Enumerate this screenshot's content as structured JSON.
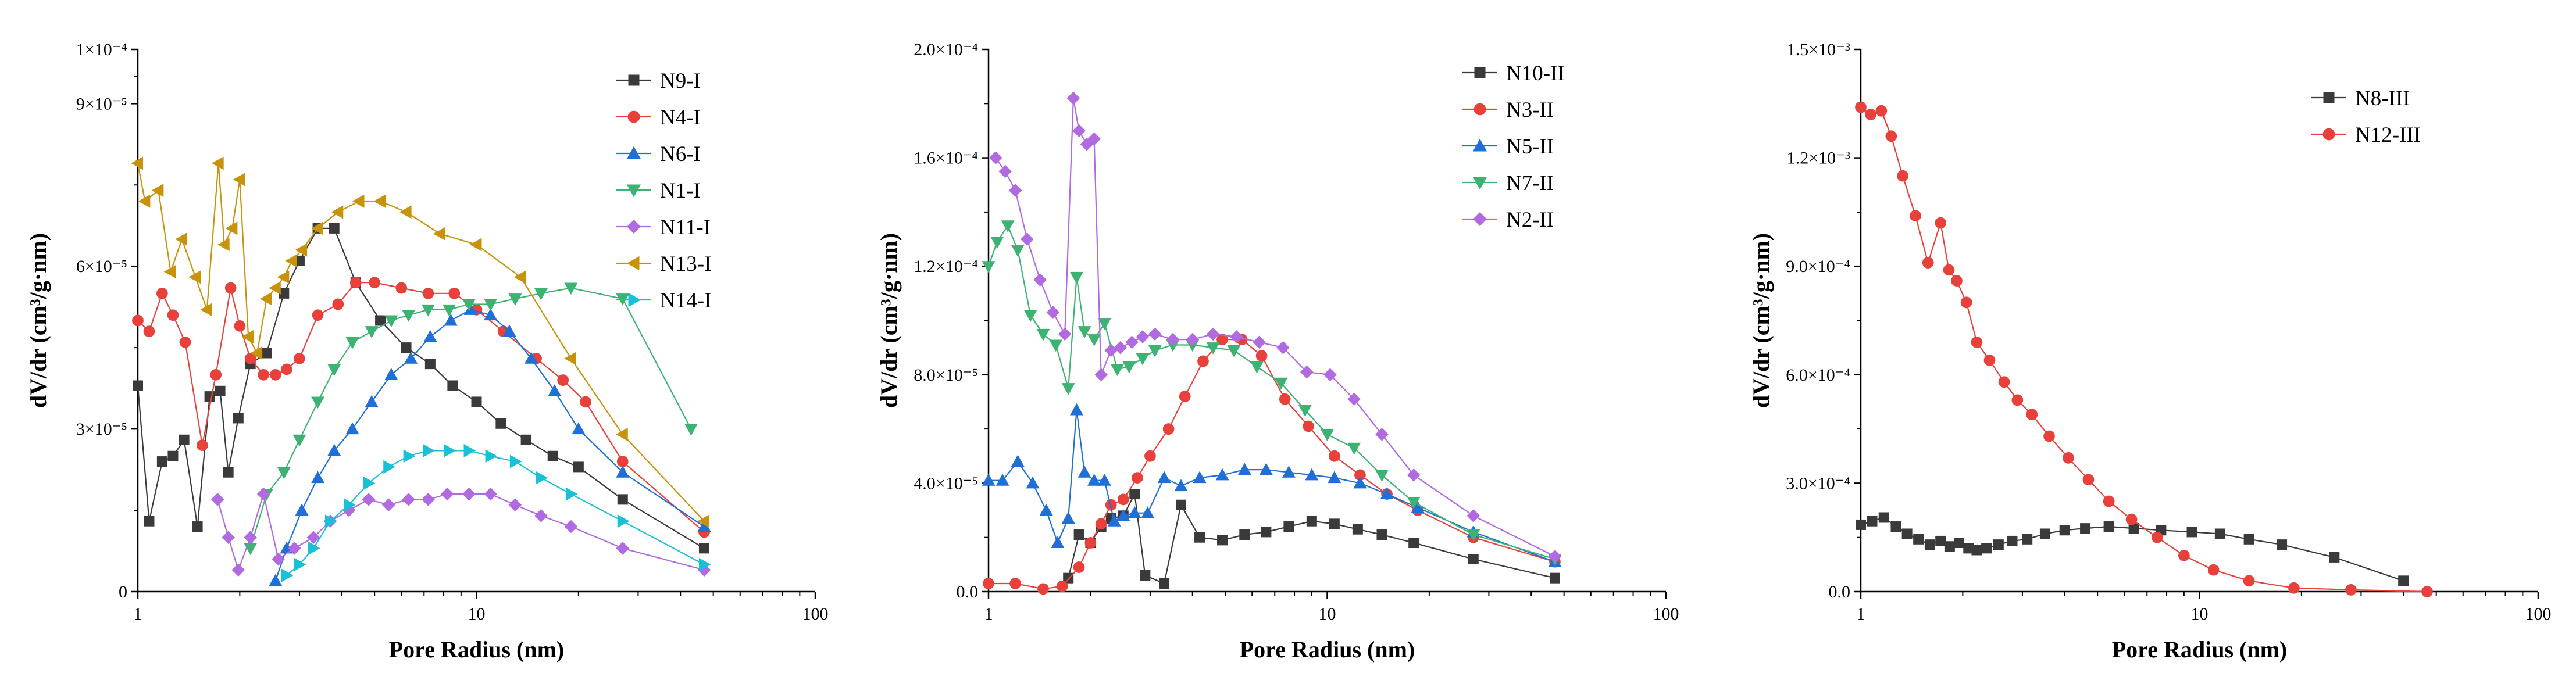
{
  "figure": {
    "background": "#ffffff"
  },
  "chart_data": [
    {
      "type": "line",
      "title": "",
      "xlabel": "Pore Radius (nm)",
      "ylabel": "dV/dr (cm³/g·nm)",
      "xscale": "log",
      "xlim": [
        1,
        100
      ],
      "ylim": [
        0,
        0.0001
      ],
      "x_ticks": [
        1,
        10,
        100
      ],
      "x_tick_labels": [
        "1",
        "10",
        "100"
      ],
      "y_ticks": [
        0,
        3e-05,
        6e-05,
        9e-05,
        0.0001
      ],
      "y_tick_labels": [
        "0",
        "3×10⁻⁵",
        "6×10⁻⁵",
        "9×10⁻⁵",
        "1×10⁻⁴"
      ],
      "legend_position": "top-right",
      "series": [
        {
          "name": "N9-I",
          "color": "#3a3a3a",
          "marker": "square",
          "x": [
            1.0,
            1.08,
            1.18,
            1.27,
            1.37,
            1.5,
            1.63,
            1.75,
            1.85,
            1.98,
            2.15,
            2.4,
            2.7,
            3.0,
            3.4,
            3.8,
            4.4,
            5.2,
            6.2,
            7.3,
            8.5,
            10.0,
            11.8,
            14,
            16.8,
            20,
            27,
            47
          ],
          "y": [
            3.8e-05,
            1.3e-05,
            2.4e-05,
            2.5e-05,
            2.8e-05,
            1.2e-05,
            3.6e-05,
            3.7e-05,
            2.2e-05,
            3.2e-05,
            4.2e-05,
            4.4e-05,
            5.5e-05,
            6.1e-05,
            6.7e-05,
            6.7e-05,
            5.7e-05,
            5e-05,
            4.5e-05,
            4.2e-05,
            3.8e-05,
            3.5e-05,
            3.1e-05,
            2.8e-05,
            2.5e-05,
            2.3e-05,
            1.7e-05,
            8e-06
          ]
        },
        {
          "name": "N4-I",
          "color": "#e8413c",
          "marker": "circle",
          "x": [
            1.0,
            1.08,
            1.18,
            1.27,
            1.38,
            1.55,
            1.7,
            1.88,
            2.0,
            2.15,
            2.35,
            2.55,
            2.75,
            3.0,
            3.4,
            3.9,
            4.4,
            5.0,
            6.0,
            7.2,
            8.6,
            10,
            12,
            15,
            18,
            21,
            27,
            47
          ],
          "y": [
            5e-05,
            4.8e-05,
            5.5e-05,
            5.1e-05,
            4.6e-05,
            2.7e-05,
            4e-05,
            5.6e-05,
            4.9e-05,
            4.3e-05,
            4e-05,
            4e-05,
            4.1e-05,
            4.3e-05,
            5.1e-05,
            5.3e-05,
            5.7e-05,
            5.7e-05,
            5.6e-05,
            5.5e-05,
            5.5e-05,
            5.2e-05,
            4.8e-05,
            4.3e-05,
            3.9e-05,
            3.5e-05,
            2.4e-05,
            1.1e-05
          ]
        },
        {
          "name": "N6-I",
          "color": "#1f6fd6",
          "marker": "triangle-up",
          "x": [
            2.55,
            2.75,
            3.05,
            3.4,
            3.8,
            4.3,
            4.9,
            5.6,
            6.4,
            7.3,
            8.4,
            9.6,
            11,
            12.5,
            14.5,
            17,
            20,
            27,
            47
          ],
          "y": [
            2e-06,
            8e-06,
            1.5e-05,
            2.1e-05,
            2.6e-05,
            3e-05,
            3.5e-05,
            4e-05,
            4.3e-05,
            4.7e-05,
            5e-05,
            5.2e-05,
            5.1e-05,
            4.8e-05,
            4.3e-05,
            3.7e-05,
            3e-05,
            2.2e-05,
            1.2e-05
          ]
        },
        {
          "name": "N1-I",
          "color": "#3cb372",
          "marker": "triangle-down",
          "x": [
            2.15,
            2.4,
            2.7,
            3.0,
            3.4,
            3.8,
            4.3,
            4.9,
            5.6,
            6.3,
            7.2,
            8.3,
            9.5,
            11,
            13,
            15.5,
            19,
            27,
            43
          ],
          "y": [
            8e-06,
            1.8e-05,
            2.2e-05,
            2.8e-05,
            3.5e-05,
            4.1e-05,
            4.6e-05,
            4.8e-05,
            5e-05,
            5.1e-05,
            5.2e-05,
            5.2e-05,
            5.3e-05,
            5.3e-05,
            5.4e-05,
            5.5e-05,
            5.6e-05,
            5.4e-05,
            3e-05
          ]
        },
        {
          "name": "N11-I",
          "color": "#b26ae0",
          "marker": "diamond",
          "x": [
            1.72,
            1.85,
            1.98,
            2.15,
            2.35,
            2.6,
            2.9,
            3.3,
            3.7,
            4.2,
            4.8,
            5.5,
            6.3,
            7.2,
            8.2,
            9.5,
            11,
            13,
            15.5,
            19,
            27,
            47
          ],
          "y": [
            1.7e-05,
            1e-05,
            4e-06,
            1e-05,
            1.8e-05,
            6e-06,
            8e-06,
            1e-05,
            1.3e-05,
            1.5e-05,
            1.7e-05,
            1.6e-05,
            1.7e-05,
            1.7e-05,
            1.8e-05,
            1.8e-05,
            1.8e-05,
            1.6e-05,
            1.4e-05,
            1.2e-05,
            8e-06,
            4e-06
          ]
        },
        {
          "name": "N13-I",
          "color": "#c8930a",
          "marker": "triangle-left",
          "x": [
            1.0,
            1.05,
            1.15,
            1.25,
            1.35,
            1.48,
            1.6,
            1.73,
            1.8,
            1.9,
            2.0,
            2.12,
            2.25,
            2.4,
            2.55,
            2.7,
            2.85,
            3.05,
            3.4,
            3.9,
            4.5,
            5.2,
            6.2,
            7.8,
            10,
            13.5,
            19,
            27,
            47
          ],
          "y": [
            7.9e-05,
            7.2e-05,
            7.4e-05,
            5.9e-05,
            6.5e-05,
            5.8e-05,
            5.2e-05,
            7.9e-05,
            6.4e-05,
            6.7e-05,
            7.6e-05,
            4.7e-05,
            4.4e-05,
            5.4e-05,
            5.6e-05,
            5.8e-05,
            6.1e-05,
            6.3e-05,
            6.7e-05,
            7e-05,
            7.2e-05,
            7.2e-05,
            7e-05,
            6.6e-05,
            6.4e-05,
            5.8e-05,
            4.3e-05,
            2.9e-05,
            1.3e-05
          ]
        },
        {
          "name": "N14-I",
          "color": "#19c0d6",
          "marker": "triangle-right",
          "x": [
            2.75,
            3.0,
            3.3,
            3.7,
            4.2,
            4.8,
            5.5,
            6.3,
            7.2,
            8.3,
            9.5,
            11,
            13,
            15.5,
            19,
            27,
            47
          ],
          "y": [
            3e-06,
            5e-06,
            8e-06,
            1.3e-05,
            1.6e-05,
            2e-05,
            2.3e-05,
            2.5e-05,
            2.6e-05,
            2.6e-05,
            2.6e-05,
            2.5e-05,
            2.4e-05,
            2.1e-05,
            1.8e-05,
            1.3e-05,
            5e-06
          ]
        }
      ]
    },
    {
      "type": "line",
      "title": "",
      "xlabel": "Pore Radius (nm)",
      "ylabel": "dV/dr (cm³/g·nm)",
      "xscale": "log",
      "xlim": [
        1,
        100
      ],
      "ylim": [
        0,
        0.0002
      ],
      "x_ticks": [
        1,
        10,
        100
      ],
      "x_tick_labels": [
        "1",
        "10",
        "100"
      ],
      "y_ticks": [
        0,
        4e-05,
        8e-05,
        0.00012,
        0.00016,
        0.0002
      ],
      "y_tick_labels": [
        "0.0",
        "4.0×10⁻⁵",
        "8.0×10⁻⁵",
        "1.2×10⁻⁴",
        "1.6×10⁻⁴",
        "2.0×10⁻⁴"
      ],
      "legend_position": "top-right",
      "series": [
        {
          "name": "N10-II",
          "color": "#3a3a3a",
          "marker": "square",
          "x": [
            1.72,
            1.85,
            2.0,
            2.15,
            2.3,
            2.5,
            2.7,
            2.9,
            3.3,
            3.7,
            4.2,
            4.9,
            5.7,
            6.6,
            7.7,
            9,
            10.5,
            12.3,
            14.5,
            18,
            27,
            47
          ],
          "y": [
            5e-06,
            2.1e-05,
            1.8e-05,
            2.4e-05,
            2.7e-05,
            2.8e-05,
            3.6e-05,
            6e-06,
            3e-06,
            3.2e-05,
            2e-05,
            1.9e-05,
            2.1e-05,
            2.2e-05,
            2.4e-05,
            2.6e-05,
            2.5e-05,
            2.3e-05,
            2.1e-05,
            1.8e-05,
            1.2e-05,
            5e-06
          ]
        },
        {
          "name": "N3-II",
          "color": "#e8413c",
          "marker": "circle",
          "x": [
            1.0,
            1.2,
            1.45,
            1.65,
            1.85,
            2.0,
            2.15,
            2.3,
            2.5,
            2.75,
            3.0,
            3.4,
            3.8,
            4.3,
            4.9,
            5.6,
            6.4,
            7.5,
            8.8,
            10.5,
            12.5,
            15,
            18.5,
            27,
            47
          ],
          "y": [
            3e-06,
            3e-06,
            1e-06,
            2e-06,
            9e-06,
            1.8e-05,
            2.5e-05,
            3.2e-05,
            3.4e-05,
            4.2e-05,
            5e-05,
            6e-05,
            7.2e-05,
            8.5e-05,
            9.3e-05,
            9.3e-05,
            8.7e-05,
            7.1e-05,
            6.1e-05,
            5e-05,
            4.3e-05,
            3.6e-05,
            3e-05,
            2e-05,
            1.1e-05
          ]
        },
        {
          "name": "N5-II",
          "color": "#1f6fd6",
          "marker": "triangle-up",
          "x": [
            1.0,
            1.1,
            1.22,
            1.35,
            1.48,
            1.6,
            1.72,
            1.82,
            1.92,
            2.05,
            2.2,
            2.35,
            2.5,
            2.7,
            2.95,
            3.3,
            3.7,
            4.2,
            4.9,
            5.7,
            6.6,
            7.7,
            9,
            10.5,
            12.5,
            15,
            18.5,
            27,
            47
          ],
          "y": [
            4.1e-05,
            4.1e-05,
            4.8e-05,
            4e-05,
            3e-05,
            1.8e-05,
            2.7e-05,
            6.7e-05,
            4.4e-05,
            4.1e-05,
            4.1e-05,
            2.6e-05,
            2.8e-05,
            2.9e-05,
            2.9e-05,
            4.2e-05,
            3.9e-05,
            4.2e-05,
            4.3e-05,
            4.5e-05,
            4.5e-05,
            4.4e-05,
            4.3e-05,
            4.2e-05,
            4e-05,
            3.6e-05,
            3.1e-05,
            2.2e-05,
            1.1e-05
          ]
        },
        {
          "name": "N7-II",
          "color": "#3cb372",
          "marker": "triangle-down",
          "x": [
            1.0,
            1.06,
            1.14,
            1.22,
            1.33,
            1.45,
            1.58,
            1.72,
            1.82,
            1.92,
            2.05,
            2.2,
            2.4,
            2.6,
            2.85,
            3.1,
            3.5,
            4.0,
            4.6,
            5.3,
            6.2,
            7.3,
            8.6,
            10,
            12,
            14.5,
            18,
            27,
            47
          ],
          "y": [
            0.00012,
            0.000129,
            0.000135,
            0.000126,
            0.000102,
            9.5e-05,
            9.1e-05,
            7.5e-05,
            0.000116,
            9.6e-05,
            9.3e-05,
            9.9e-05,
            8.2e-05,
            8.3e-05,
            8.6e-05,
            8.9e-05,
            9.1e-05,
            9.1e-05,
            9e-05,
            8.9e-05,
            8.3e-05,
            7.7e-05,
            6.7e-05,
            5.8e-05,
            5.3e-05,
            4.3e-05,
            3.3e-05,
            2.1e-05,
            1.2e-05
          ]
        },
        {
          "name": "N2-II",
          "color": "#b26ae0",
          "marker": "diamond",
          "x": [
            1.05,
            1.12,
            1.2,
            1.3,
            1.42,
            1.55,
            1.68,
            1.78,
            1.85,
            1.95,
            2.05,
            2.15,
            2.3,
            2.45,
            2.65,
            2.85,
            3.1,
            3.5,
            4.0,
            4.6,
            5.4,
            6.3,
            7.4,
            8.7,
            10.2,
            12,
            14.5,
            18,
            27,
            47
          ],
          "y": [
            0.00016,
            0.000155,
            0.000148,
            0.00013,
            0.000115,
            0.000103,
            9.5e-05,
            0.000182,
            0.00017,
            0.000165,
            0.000167,
            8e-05,
            8.9e-05,
            9e-05,
            9.2e-05,
            9.4e-05,
            9.5e-05,
            9.3e-05,
            9.3e-05,
            9.5e-05,
            9.4e-05,
            9.2e-05,
            9e-05,
            8.1e-05,
            8e-05,
            7.1e-05,
            5.8e-05,
            4.3e-05,
            2.8e-05,
            1.3e-05
          ]
        }
      ]
    },
    {
      "type": "line",
      "title": "",
      "xlabel": "Pore Radius (nm)",
      "ylabel": "dV/dr (cm³/g·nm)",
      "xscale": "log",
      "xlim": [
        1,
        100
      ],
      "ylim": [
        0,
        0.0015
      ],
      "x_ticks": [
        1,
        10,
        100
      ],
      "x_tick_labels": [
        "1",
        "10",
        "100"
      ],
      "y_ticks": [
        0,
        0.0003,
        0.0006,
        0.0009,
        0.0012,
        0.0015
      ],
      "y_tick_labels": [
        "0.0",
        "3.0×10⁻⁴",
        "6.0×10⁻⁴",
        "9.0×10⁻⁴",
        "1.2×10⁻³",
        "1.5×10⁻³"
      ],
      "legend_position": "top-right",
      "series": [
        {
          "name": "N8-III",
          "color": "#3a3a3a",
          "marker": "square",
          "x": [
            1.0,
            1.08,
            1.17,
            1.27,
            1.37,
            1.48,
            1.6,
            1.72,
            1.83,
            1.95,
            2.08,
            2.2,
            2.35,
            2.55,
            2.8,
            3.1,
            3.5,
            4.0,
            4.6,
            5.4,
            6.4,
            7.7,
            9.5,
            11.5,
            14,
            17.5,
            25,
            40
          ],
          "y": [
            0.000185,
            0.000195,
            0.000205,
            0.00018,
            0.00016,
            0.000145,
            0.00013,
            0.00014,
            0.000125,
            0.000135,
            0.00012,
            0.000115,
            0.00012,
            0.00013,
            0.00014,
            0.000145,
            0.00016,
            0.00017,
            0.000175,
            0.00018,
            0.000175,
            0.00017,
            0.000165,
            0.00016,
            0.000145,
            0.00013,
            9.5e-05,
            3e-05
          ]
        },
        {
          "name": "N12-III",
          "color": "#e8413c",
          "marker": "circle",
          "x": [
            1.0,
            1.07,
            1.15,
            1.23,
            1.33,
            1.45,
            1.58,
            1.72,
            1.82,
            1.92,
            2.05,
            2.2,
            2.4,
            2.65,
            2.9,
            3.2,
            3.6,
            4.1,
            4.7,
            5.4,
            6.3,
            7.5,
            9.0,
            11,
            14,
            19,
            28,
            47
          ],
          "y": [
            0.00134,
            0.00132,
            0.00133,
            0.00126,
            0.00115,
            0.00104,
            0.00091,
            0.00102,
            0.00089,
            0.00086,
            0.0008,
            0.00069,
            0.00064,
            0.00058,
            0.00053,
            0.00049,
            0.00043,
            0.00037,
            0.00031,
            0.00025,
            0.0002,
            0.00015,
            0.0001,
            6e-05,
            3e-05,
            1e-05,
            5e-06,
            0.0
          ]
        }
      ]
    }
  ]
}
